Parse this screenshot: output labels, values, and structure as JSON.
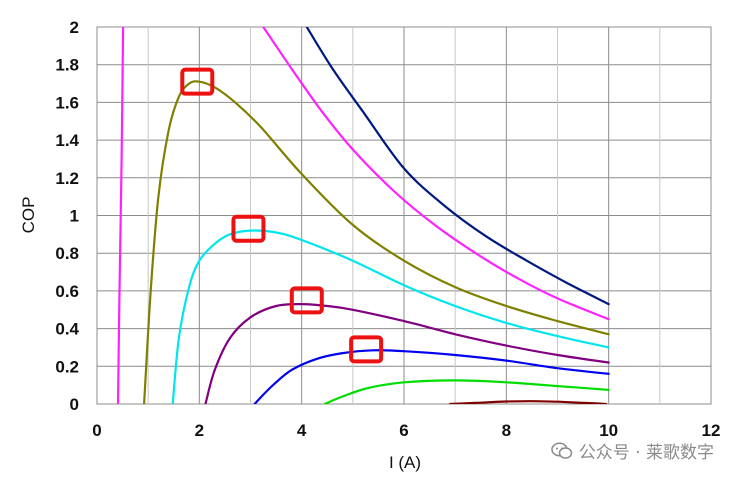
{
  "chart_data": {
    "type": "line",
    "xlabel": "I (A)",
    "ylabel": "COP",
    "xlim": [
      0,
      12
    ],
    "ylim": [
      0,
      2
    ],
    "xticks": [
      0,
      2,
      4,
      6,
      8,
      10,
      12
    ],
    "yticks": [
      0,
      0.2,
      0.4,
      0.6,
      0.8,
      1,
      1.2,
      1.4,
      1.6,
      1.8,
      2
    ],
    "ytick_labels": [
      "0",
      "0.2",
      "0.4",
      "0.6",
      "0.8",
      "1",
      "1.2",
      "1.4",
      "1.6",
      "1.8",
      "2"
    ],
    "grid": true,
    "legend": "none",
    "series": [
      {
        "color": "#ff22ff",
        "x": [
          0.41,
          0.44,
          0.48,
          0.51
        ],
        "y": [
          0,
          0.6,
          1.3,
          2.0
        ]
      },
      {
        "color": "#001a80",
        "x": [
          4.1,
          4.6,
          5.2,
          6.0,
          6.8,
          7.6,
          8.4,
          9.2,
          10.0
        ],
        "y": [
          2.0,
          1.78,
          1.55,
          1.25,
          1.05,
          0.89,
          0.76,
          0.64,
          0.53
        ]
      },
      {
        "color": "#ff22ff",
        "x": [
          3.25,
          3.8,
          4.4,
          5.0,
          5.8,
          6.6,
          7.4,
          8.2,
          9.0,
          10.0
        ],
        "y": [
          2.0,
          1.78,
          1.55,
          1.35,
          1.13,
          0.95,
          0.8,
          0.67,
          0.56,
          0.45
        ]
      },
      {
        "color": "#808000",
        "x": [
          0.92,
          1.05,
          1.2,
          1.4,
          1.6,
          1.8,
          2.0,
          2.3,
          2.7,
          3.2,
          4.0,
          5.0,
          6.0,
          7.0,
          8.0,
          9.0,
          10.0
        ],
        "y": [
          0,
          0.6,
          1.1,
          1.45,
          1.63,
          1.7,
          1.71,
          1.68,
          1.6,
          1.47,
          1.22,
          0.95,
          0.76,
          0.62,
          0.52,
          0.44,
          0.37
        ]
      },
      {
        "color": "#00e5ee",
        "x": [
          1.48,
          1.6,
          1.8,
          2.0,
          2.3,
          2.6,
          3.0,
          3.5,
          4.0,
          5.0,
          6.0,
          7.0,
          8.0,
          9.0,
          10.0
        ],
        "y": [
          0,
          0.35,
          0.62,
          0.76,
          0.85,
          0.9,
          0.92,
          0.91,
          0.87,
          0.76,
          0.63,
          0.52,
          0.43,
          0.36,
          0.3
        ]
      },
      {
        "color": "#800080",
        "x": [
          2.12,
          2.3,
          2.6,
          3.0,
          3.5,
          4.0,
          4.5,
          5.0,
          6.0,
          7.0,
          8.0,
          9.0,
          10.0
        ],
        "y": [
          0,
          0.18,
          0.35,
          0.46,
          0.52,
          0.53,
          0.52,
          0.5,
          0.44,
          0.37,
          0.31,
          0.26,
          0.22
        ]
      },
      {
        "color": "#0000ee",
        "x": [
          3.08,
          3.4,
          3.8,
          4.3,
          4.8,
          5.4,
          6.0,
          7.0,
          8.0,
          9.0,
          10.0
        ],
        "y": [
          0,
          0.09,
          0.18,
          0.24,
          0.27,
          0.285,
          0.28,
          0.26,
          0.23,
          0.19,
          0.16
        ]
      },
      {
        "color": "#00dd00",
        "x": [
          4.45,
          4.8,
          5.3,
          6.0,
          7.0,
          8.0,
          9.0,
          10.0
        ],
        "y": [
          0,
          0.04,
          0.085,
          0.115,
          0.125,
          0.115,
          0.095,
          0.075
        ]
      },
      {
        "color": "#800000",
        "x": [
          6.9,
          7.4,
          8.0,
          8.5,
          9.0,
          9.5,
          9.95
        ],
        "y": [
          0,
          0.006,
          0.013,
          0.015,
          0.012,
          0.006,
          0
        ]
      }
    ],
    "annotations": [
      {
        "shape": "rounded-square",
        "color": "#ee1111",
        "x": 1.96,
        "y": 1.71
      },
      {
        "shape": "rounded-square",
        "color": "#ee1111",
        "x": 2.96,
        "y": 0.93
      },
      {
        "shape": "rounded-square",
        "color": "#ee1111",
        "x": 4.1,
        "y": 0.55
      },
      {
        "shape": "rounded-square",
        "color": "#ee1111",
        "x": 5.26,
        "y": 0.29
      }
    ]
  },
  "watermark": {
    "text": "公众号 · 莱歌数字",
    "icon": "wechat-icon"
  }
}
